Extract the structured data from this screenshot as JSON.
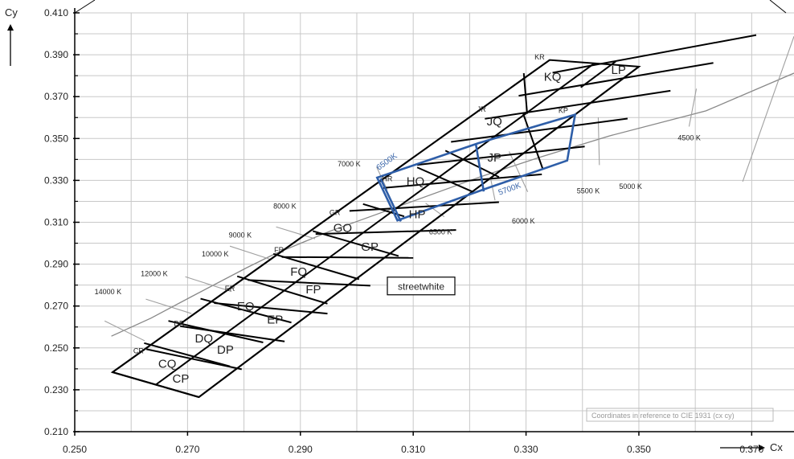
{
  "chart_data": {
    "type": "scatter",
    "title": "",
    "xlabel": "Cx",
    "ylabel": "Cy",
    "xlim": [
      0.25,
      0.3775
    ],
    "ylim": [
      0.21,
      0.41
    ],
    "x_ticks": [
      "0.250",
      "0.270",
      "0.290",
      "0.310",
      "0.330",
      "0.350",
      "0.370"
    ],
    "y_ticks": [
      "0.210",
      "0.230",
      "0.250",
      "0.270",
      "0.290",
      "0.310",
      "0.330",
      "0.350",
      "0.370",
      "0.390",
      "0.410"
    ],
    "grid": true,
    "colors": {
      "grid": "#c8c8c8",
      "bins": "#000000",
      "streetwhite": "#2e5ea8",
      "locus": "#888888",
      "isotherm": "#a0a0a0"
    },
    "planckian_locus": [
      [
        0.2565,
        0.2556
      ],
      [
        0.2635,
        0.2642
      ],
      [
        0.2707,
        0.2745
      ],
      [
        0.2805,
        0.2883
      ],
      [
        0.2853,
        0.2947
      ],
      [
        0.2952,
        0.3057
      ],
      [
        0.3064,
        0.3166
      ],
      [
        0.322,
        0.3318
      ],
      [
        0.3325,
        0.3411
      ],
      [
        0.3447,
        0.3512
      ],
      [
        0.3619,
        0.3632
      ],
      [
        0.3775,
        0.3812
      ]
    ],
    "bin_rows": [
      [
        [
          0.2567,
          0.2384
        ],
        [
          0.272,
          0.2265
        ]
      ],
      [
        [
          0.2627,
          0.2494
        ],
        [
          0.2796,
          0.2398
        ]
      ],
      [
        [
          0.2687,
          0.2604
        ],
        [
          0.2872,
          0.2531
        ]
      ],
      [
        [
          0.2747,
          0.2714
        ],
        [
          0.2948,
          0.2664
        ]
      ],
      [
        [
          0.2807,
          0.2824
        ],
        [
          0.3024,
          0.2797
        ]
      ],
      [
        [
          0.2867,
          0.2934
        ],
        [
          0.31,
          0.293
        ]
      ],
      [
        [
          0.2927,
          0.3044
        ],
        [
          0.3176,
          0.3063
        ]
      ],
      [
        [
          0.2987,
          0.3154
        ],
        [
          0.3252,
          0.3196
        ]
      ],
      [
        [
          0.3047,
          0.3264
        ],
        [
          0.3328,
          0.3329
        ]
      ],
      [
        [
          0.3107,
          0.3374
        ],
        [
          0.3404,
          0.3462
        ]
      ],
      [
        [
          0.3167,
          0.3484
        ],
        [
          0.348,
          0.3595
        ]
      ],
      [
        [
          0.3227,
          0.3594
        ],
        [
          0.3556,
          0.3728
        ]
      ],
      [
        [
          0.3287,
          0.3704
        ],
        [
          0.3632,
          0.3861
        ]
      ],
      [
        [
          0.3347,
          0.3814
        ],
        [
          0.3708,
          0.3994
        ]
      ]
    ],
    "bin_outline": [
      [
        0.2567,
        0.2384
      ],
      [
        0.272,
        0.2265
      ],
      [
        0.35,
        0.3843
      ],
      [
        0.3342,
        0.3875
      ]
    ],
    "bin_grid": [
      [
        [
          0.2567,
          0.2384
        ],
        [
          0.3342,
          0.3875
        ]
      ],
      [
        [
          0.272,
          0.2265
        ],
        [
          0.35,
          0.3843
        ]
      ],
      [
        [
          0.2644,
          0.2325
        ],
        [
          0.3421,
          0.3859
        ]
      ]
    ],
    "bin_dividers": [
      [
        [
          0.2623,
          0.2523
        ],
        [
          0.2775,
          0.2412
        ]
      ],
      [
        [
          0.2666,
          0.2629
        ],
        [
          0.2834,
          0.2526
        ]
      ],
      [
        [
          0.2723,
          0.2735
        ],
        [
          0.2884,
          0.2621
        ]
      ],
      [
        [
          0.2788,
          0.2842
        ],
        [
          0.2948,
          0.2711
        ]
      ],
      [
        [
          0.2852,
          0.2949
        ],
        [
          0.3004,
          0.2828
        ]
      ],
      [
        [
          0.2922,
          0.3058
        ],
        [
          0.3074,
          0.2939
        ]
      ],
      [
        [
          0.3011,
          0.3187
        ],
        [
          0.3084,
          0.3128
        ]
      ],
      [
        [
          0.3107,
          0.3362
        ],
        [
          0.3205,
          0.3246
        ]
      ],
      [
        [
          0.3157,
          0.3442
        ],
        [
          0.3252,
          0.3316
        ]
      ],
      [
        [
          0.3296,
          0.3812
        ],
        [
          0.3302,
          0.3618
        ]
      ],
      [
        [
          0.3295,
          0.3618
        ],
        [
          0.333,
          0.3352
        ]
      ],
      [
        [
          0.3397,
          0.3744
        ],
        [
          0.3459,
          0.3868
        ]
      ]
    ],
    "bins": [
      {
        "label": "CP",
        "x": 0.2688,
        "y": 0.2335,
        "size": "big"
      },
      {
        "label": "CQ",
        "x": 0.2664,
        "y": 0.2405,
        "size": "big"
      },
      {
        "label": "CR",
        "x": 0.2613,
        "y": 0.2474,
        "size": "small"
      },
      {
        "label": "DP",
        "x": 0.2767,
        "y": 0.2473,
        "size": "big"
      },
      {
        "label": "DQ",
        "x": 0.2729,
        "y": 0.2527,
        "size": "big"
      },
      {
        "label": "DR",
        "x": 0.2685,
        "y": 0.2605,
        "size": "small"
      },
      {
        "label": "EP",
        "x": 0.2855,
        "y": 0.2616,
        "size": "big"
      },
      {
        "label": "EQ",
        "x": 0.2803,
        "y": 0.2679,
        "size": "big"
      },
      {
        "label": "ER",
        "x": 0.2775,
        "y": 0.2772,
        "size": "small"
      },
      {
        "label": "FP",
        "x": 0.2923,
        "y": 0.2761,
        "size": "big"
      },
      {
        "label": "FQ",
        "x": 0.2897,
        "y": 0.2845,
        "size": "big"
      },
      {
        "label": "FR",
        "x": 0.2862,
        "y": 0.2957,
        "size": "small"
      },
      {
        "label": "GP",
        "x": 0.3023,
        "y": 0.2964,
        "size": "big"
      },
      {
        "label": "GQ",
        "x": 0.2975,
        "y": 0.3053,
        "size": "big"
      },
      {
        "label": "GR",
        "x": 0.2961,
        "y": 0.3135,
        "size": "small"
      },
      {
        "label": "HP",
        "x": 0.3107,
        "y": 0.3119,
        "size": "big"
      },
      {
        "label": "HQ",
        "x": 0.3104,
        "y": 0.3277,
        "size": "big"
      },
      {
        "label": "HR",
        "x": 0.3054,
        "y": 0.3295,
        "size": "small"
      },
      {
        "label": "JP",
        "x": 0.3244,
        "y": 0.3389,
        "size": "big"
      },
      {
        "label": "JQ",
        "x": 0.3244,
        "y": 0.3563,
        "size": "big"
      },
      {
        "label": "JR",
        "x": 0.3221,
        "y": 0.3628,
        "size": "small"
      },
      {
        "label": "KP",
        "x": 0.3366,
        "y": 0.3623,
        "size": "small"
      },
      {
        "label": "KQ",
        "x": 0.3347,
        "y": 0.3776,
        "size": "big"
      },
      {
        "label": "KR",
        "x": 0.3324,
        "y": 0.3877,
        "size": "small"
      },
      {
        "label": "LP",
        "x": 0.3464,
        "y": 0.3808,
        "size": "big"
      }
    ],
    "streetwhite_region": [
      [
        0.3036,
        0.3313
      ],
      [
        0.3216,
        0.3478
      ],
      [
        0.3387,
        0.3614
      ],
      [
        0.3373,
        0.3395
      ],
      [
        0.3224,
        0.3256
      ],
      [
        0.3072,
        0.3109
      ]
    ],
    "streetwhite_lines": [
      [
        [
          0.3042,
          0.3309
        ],
        [
          0.3078,
          0.3104
        ]
      ],
      [
        [
          0.3211,
          0.3474
        ],
        [
          0.3225,
          0.3247
        ]
      ]
    ],
    "streetwhite_labels": [
      {
        "text": "6500K",
        "x": 0.3039,
        "y": 0.3347,
        "angle": -36
      },
      {
        "text": "5700K",
        "x": 0.3253,
        "y": 0.3229,
        "angle": -20
      }
    ],
    "isotherms": [
      {
        "label": "14000 K",
        "from": [
          0.2553,
          0.2629
        ],
        "to": [
          0.2624,
          0.2534
        ],
        "lx": 0.2535,
        "ly": 0.2757
      },
      {
        "label": "12000 K",
        "from": [
          0.2626,
          0.2733
        ],
        "to": [
          0.2707,
          0.2664
        ],
        "lx": 0.2617,
        "ly": 0.2842
      },
      {
        "label": "10000 K",
        "from": [
          0.2696,
          0.284
        ],
        "to": [
          0.2778,
          0.2769
        ],
        "lx": 0.2725,
        "ly": 0.2936
      },
      {
        "label": "9000 K",
        "from": [
          0.2775,
          0.2986
        ],
        "to": [
          0.2848,
          0.2922
        ],
        "lx": 0.2773,
        "ly": 0.3027
      },
      {
        "label": "8000 K",
        "from": [
          0.2857,
          0.3078
        ],
        "to": [
          0.2926,
          0.3021
        ],
        "lx": 0.2852,
        "ly": 0.3165
      },
      {
        "label": "7000 K",
        "from": [
          0.3035,
          0.3365
        ],
        "to": [
          0.3054,
          0.3254
        ],
        "lx": 0.2966,
        "ly": 0.3366
      },
      {
        "label": "6500 K",
        "from": [
          0.3122,
          0.3191
        ],
        "to": [
          0.3155,
          0.3126
        ],
        "lx": 0.3128,
        "ly": 0.3043
      },
      {
        "label": "6000 K",
        "from": [
          0.3237,
          0.3312
        ],
        "to": [
          0.3245,
          0.3205
        ],
        "lx": 0.3275,
        "ly": 0.3094
      },
      {
        "label": "5500 K",
        "from": [
          0.327,
          0.3438
        ],
        "to": [
          0.3303,
          0.3245
        ],
        "lx": 0.339,
        "ly": 0.3239
      },
      {
        "label": "5000 K",
        "from": [
          0.3428,
          0.3601
        ],
        "to": [
          0.343,
          0.3373
        ],
        "lx": 0.3465,
        "ly": 0.326
      },
      {
        "label": "4500 K",
        "from": [
          0.3602,
          0.3738
        ],
        "to": [
          0.3589,
          0.3557
        ],
        "lx": 0.3569,
        "ly": 0.3492
      },
      {
        "label": "",
        "from": [
          0.3684,
          0.3294
        ],
        "to": [
          0.3775,
          0.3988
        ],
        "lx": 0.3684,
        "ly": 0.3294
      }
    ],
    "streetwhite_box": {
      "label": "streetwhite",
      "x": 0.3114,
      "y": 0.2792
    },
    "note": "Coordinates in reference to CIE 1931 (cx cy)"
  }
}
